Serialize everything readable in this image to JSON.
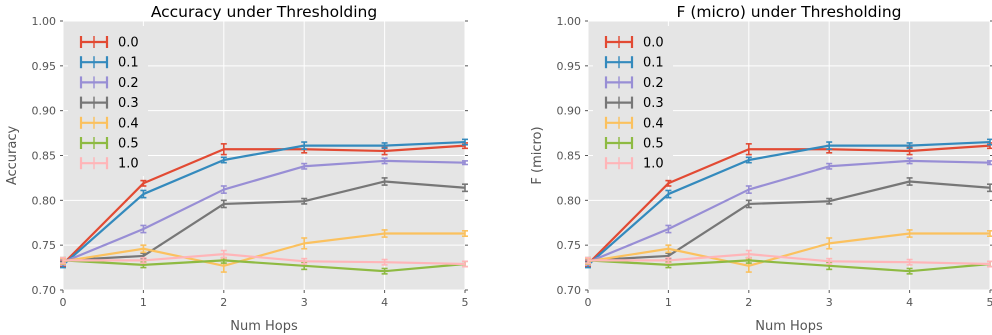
{
  "chart_data": [
    {
      "type": "line",
      "title": "Accuracy under Thresholding",
      "xlabel": "Num Hops",
      "ylabel": "Accuracy",
      "x": [
        0,
        1,
        2,
        3,
        4,
        5
      ],
      "xlim": [
        0,
        5
      ],
      "ylim": [
        0.7,
        1.0
      ],
      "x_ticks": [
        "0",
        "1",
        "2",
        "3",
        "4",
        "5"
      ],
      "y_ticks": [
        "0.70",
        "0.75",
        "0.80",
        "0.85",
        "0.90",
        "0.95",
        "1.00"
      ],
      "grid": true,
      "legend_position": "top-left",
      "series": [
        {
          "name": "0.0",
          "color": "#E24A33",
          "values": [
            0.729,
            0.819,
            0.857,
            0.857,
            0.855,
            0.861
          ],
          "errors": [
            0.003,
            0.003,
            0.006,
            0.004,
            0.004,
            0.003
          ]
        },
        {
          "name": "0.1",
          "color": "#348ABD",
          "values": [
            0.728,
            0.807,
            0.845,
            0.861,
            0.861,
            0.865
          ],
          "errors": [
            0.003,
            0.004,
            0.003,
            0.004,
            0.003,
            0.003
          ]
        },
        {
          "name": "0.2",
          "color": "#988ED5",
          "values": [
            0.731,
            0.768,
            0.812,
            0.838,
            0.844,
            0.842
          ],
          "errors": [
            0.003,
            0.004,
            0.004,
            0.003,
            0.003,
            0.002
          ]
        },
        {
          "name": "0.3",
          "color": "#777777",
          "values": [
            0.733,
            0.738,
            0.796,
            0.799,
            0.821,
            0.814
          ],
          "errors": [
            0.003,
            0.003,
            0.004,
            0.003,
            0.004,
            0.004
          ]
        },
        {
          "name": "0.4",
          "color": "#FBC15E",
          "values": [
            0.732,
            0.746,
            0.727,
            0.752,
            0.763,
            0.763
          ],
          "errors": [
            0.003,
            0.004,
            0.007,
            0.006,
            0.004,
            0.003
          ]
        },
        {
          "name": "0.5",
          "color": "#8EBA42",
          "values": [
            0.733,
            0.728,
            0.733,
            0.727,
            0.721,
            0.729
          ],
          "errors": [
            0.003,
            0.003,
            0.003,
            0.004,
            0.003,
            0.003
          ]
        },
        {
          "name": "1.0",
          "color": "#FFB5B8",
          "values": [
            0.733,
            0.733,
            0.74,
            0.732,
            0.731,
            0.729
          ],
          "errors": [
            0.003,
            0.003,
            0.004,
            0.003,
            0.003,
            0.003
          ]
        }
      ]
    },
    {
      "type": "line",
      "title": "F (micro) under Thresholding",
      "xlabel": "Num Hops",
      "ylabel": "F (micro)",
      "x": [
        0,
        1,
        2,
        3,
        4,
        5
      ],
      "xlim": [
        0,
        5
      ],
      "ylim": [
        0.7,
        1.0
      ],
      "x_ticks": [
        "0",
        "1",
        "2",
        "3",
        "4",
        "5"
      ],
      "y_ticks": [
        "0.70",
        "0.75",
        "0.80",
        "0.85",
        "0.90",
        "0.95",
        "1.00"
      ],
      "grid": true,
      "legend_position": "top-left",
      "series": [
        {
          "name": "0.0",
          "color": "#E24A33",
          "values": [
            0.729,
            0.819,
            0.857,
            0.857,
            0.855,
            0.861
          ],
          "errors": [
            0.003,
            0.003,
            0.006,
            0.004,
            0.004,
            0.003
          ]
        },
        {
          "name": "0.1",
          "color": "#348ABD",
          "values": [
            0.728,
            0.807,
            0.845,
            0.861,
            0.861,
            0.865
          ],
          "errors": [
            0.003,
            0.004,
            0.003,
            0.004,
            0.003,
            0.003
          ]
        },
        {
          "name": "0.2",
          "color": "#988ED5",
          "values": [
            0.731,
            0.768,
            0.812,
            0.838,
            0.844,
            0.842
          ],
          "errors": [
            0.003,
            0.004,
            0.004,
            0.003,
            0.003,
            0.002
          ]
        },
        {
          "name": "0.3",
          "color": "#777777",
          "values": [
            0.733,
            0.738,
            0.796,
            0.799,
            0.821,
            0.814
          ],
          "errors": [
            0.003,
            0.003,
            0.004,
            0.003,
            0.004,
            0.004
          ]
        },
        {
          "name": "0.4",
          "color": "#FBC15E",
          "values": [
            0.732,
            0.746,
            0.727,
            0.752,
            0.763,
            0.763
          ],
          "errors": [
            0.003,
            0.004,
            0.007,
            0.006,
            0.004,
            0.003
          ]
        },
        {
          "name": "0.5",
          "color": "#8EBA42",
          "values": [
            0.733,
            0.728,
            0.733,
            0.727,
            0.721,
            0.729
          ],
          "errors": [
            0.003,
            0.003,
            0.003,
            0.004,
            0.003,
            0.003
          ]
        },
        {
          "name": "1.0",
          "color": "#FFB5B8",
          "values": [
            0.733,
            0.733,
            0.74,
            0.732,
            0.731,
            0.729
          ],
          "errors": [
            0.003,
            0.003,
            0.004,
            0.003,
            0.003,
            0.003
          ]
        }
      ]
    }
  ]
}
